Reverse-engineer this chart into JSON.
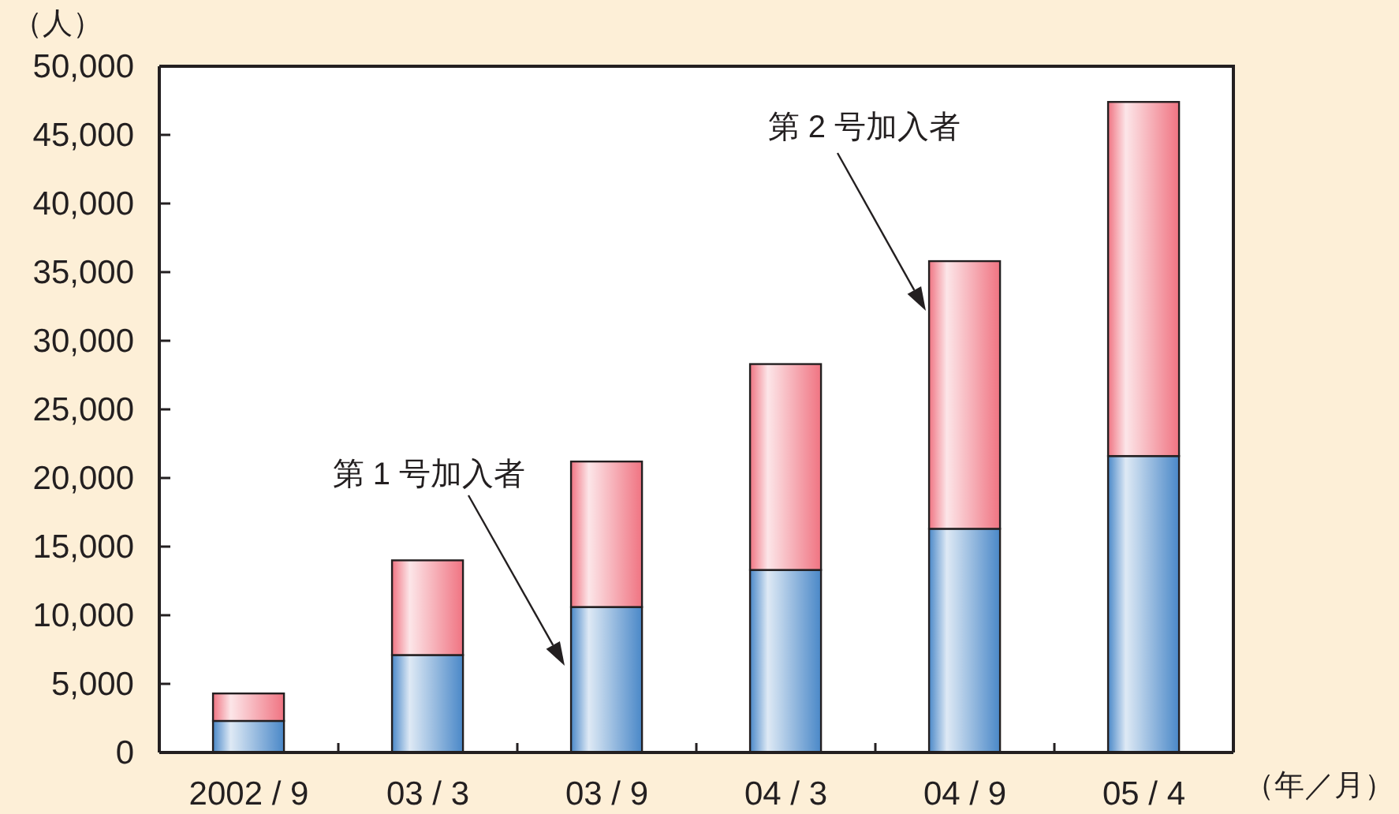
{
  "chart_data": {
    "type": "bar",
    "stacked": true,
    "ylabel": "（人）",
    "xlabel": "（年／月）",
    "categories": [
      "2002 / 9",
      "03 / 3",
      "03 / 9",
      "04 / 3",
      "04 / 9",
      "05 / 4"
    ],
    "series": [
      {
        "color": "#4a88c8",
        "values": [
          2300,
          7100,
          10600,
          13300,
          16300,
          21600
        ]
      },
      {
        "color": "#f07482",
        "values": [
          2000,
          6900,
          10600,
          15000,
          19500,
          25800
        ]
      }
    ],
    "ylim": [
      0,
      50000
    ],
    "yticks": [
      {
        "value": 0,
        "label": "0"
      },
      {
        "value": 5000,
        "label": "5,000"
      },
      {
        "value": 10000,
        "label": "10,000"
      },
      {
        "value": 15000,
        "label": "15,000"
      },
      {
        "value": 20000,
        "label": "20,000"
      },
      {
        "value": 25000,
        "label": "25,000"
      },
      {
        "value": 30000,
        "label": "30,000"
      },
      {
        "value": 35000,
        "label": "35,000"
      },
      {
        "value": 40000,
        "label": "40,000"
      },
      {
        "value": 45000,
        "label": "45,000"
      },
      {
        "value": 50000,
        "label": "50,000"
      }
    ],
    "annotations": [
      "第 1 号加入者",
      "第 2 号加入者"
    ]
  }
}
